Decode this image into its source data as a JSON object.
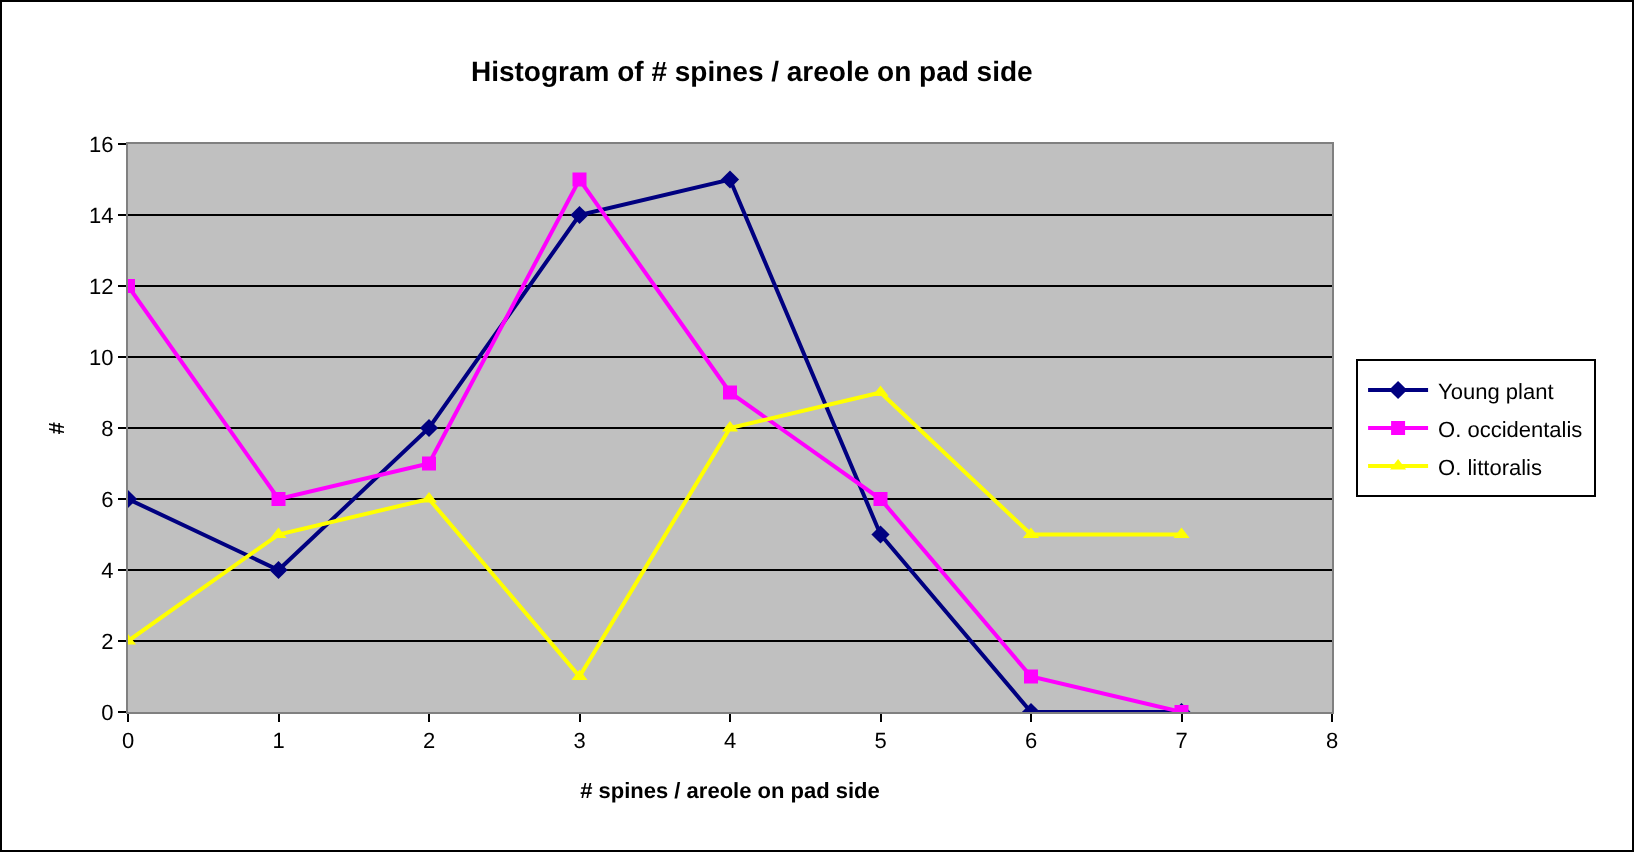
{
  "chart_data": {
    "type": "line",
    "title": "Histogram of # spines / areole on pad side",
    "xlabel": "# spines / areole on pad side",
    "ylabel": "#",
    "x": [
      0,
      1,
      2,
      3,
      4,
      5,
      6,
      7
    ],
    "series": [
      {
        "name": "Young plant",
        "color": "#000080",
        "marker": "diamond",
        "values": [
          6,
          4,
          8,
          14,
          15,
          5,
          0,
          0
        ]
      },
      {
        "name": "O. occidentalis",
        "color": "#ff00ff",
        "marker": "square",
        "values": [
          12,
          6,
          7,
          15,
          9,
          6,
          1,
          0
        ]
      },
      {
        "name": "O. littoralis",
        "color": "#ffff00",
        "marker": "triangle",
        "values": [
          2,
          5,
          6,
          1,
          8,
          9,
          5,
          5
        ]
      }
    ],
    "xlim": [
      0,
      8
    ],
    "xticks": [
      0,
      1,
      2,
      3,
      4,
      5,
      6,
      7,
      8
    ],
    "ylim": [
      0,
      16
    ],
    "yticks": [
      0,
      2,
      4,
      6,
      8,
      10,
      12,
      14,
      16
    ],
    "grid": "y",
    "legend": "right",
    "line_style": "solid"
  }
}
